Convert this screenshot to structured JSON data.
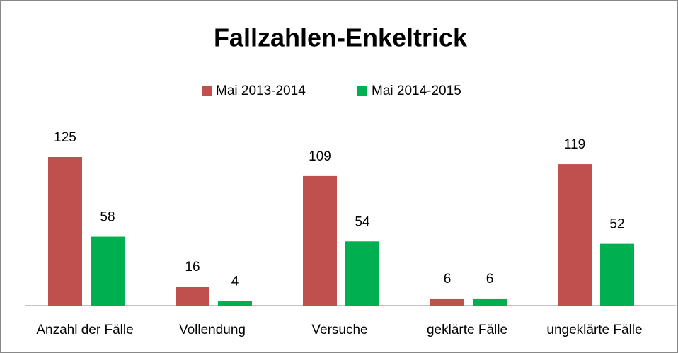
{
  "chart_data": {
    "type": "bar",
    "title": "Fallzahlen-Enkeltrick",
    "categories": [
      "Anzahl der Fälle",
      "Vollendung",
      "Versuche",
      "geklärte Fälle",
      "ungeklärte Fälle"
    ],
    "series": [
      {
        "name": "Mai 2013-2014",
        "color": "#c0504d",
        "values": [
          125,
          16,
          109,
          6,
          119
        ]
      },
      {
        "name": "Mai 2014-2015",
        "color": "#00b050",
        "values": [
          58,
          4,
          54,
          6,
          52
        ]
      }
    ],
    "legend": "top"
  }
}
